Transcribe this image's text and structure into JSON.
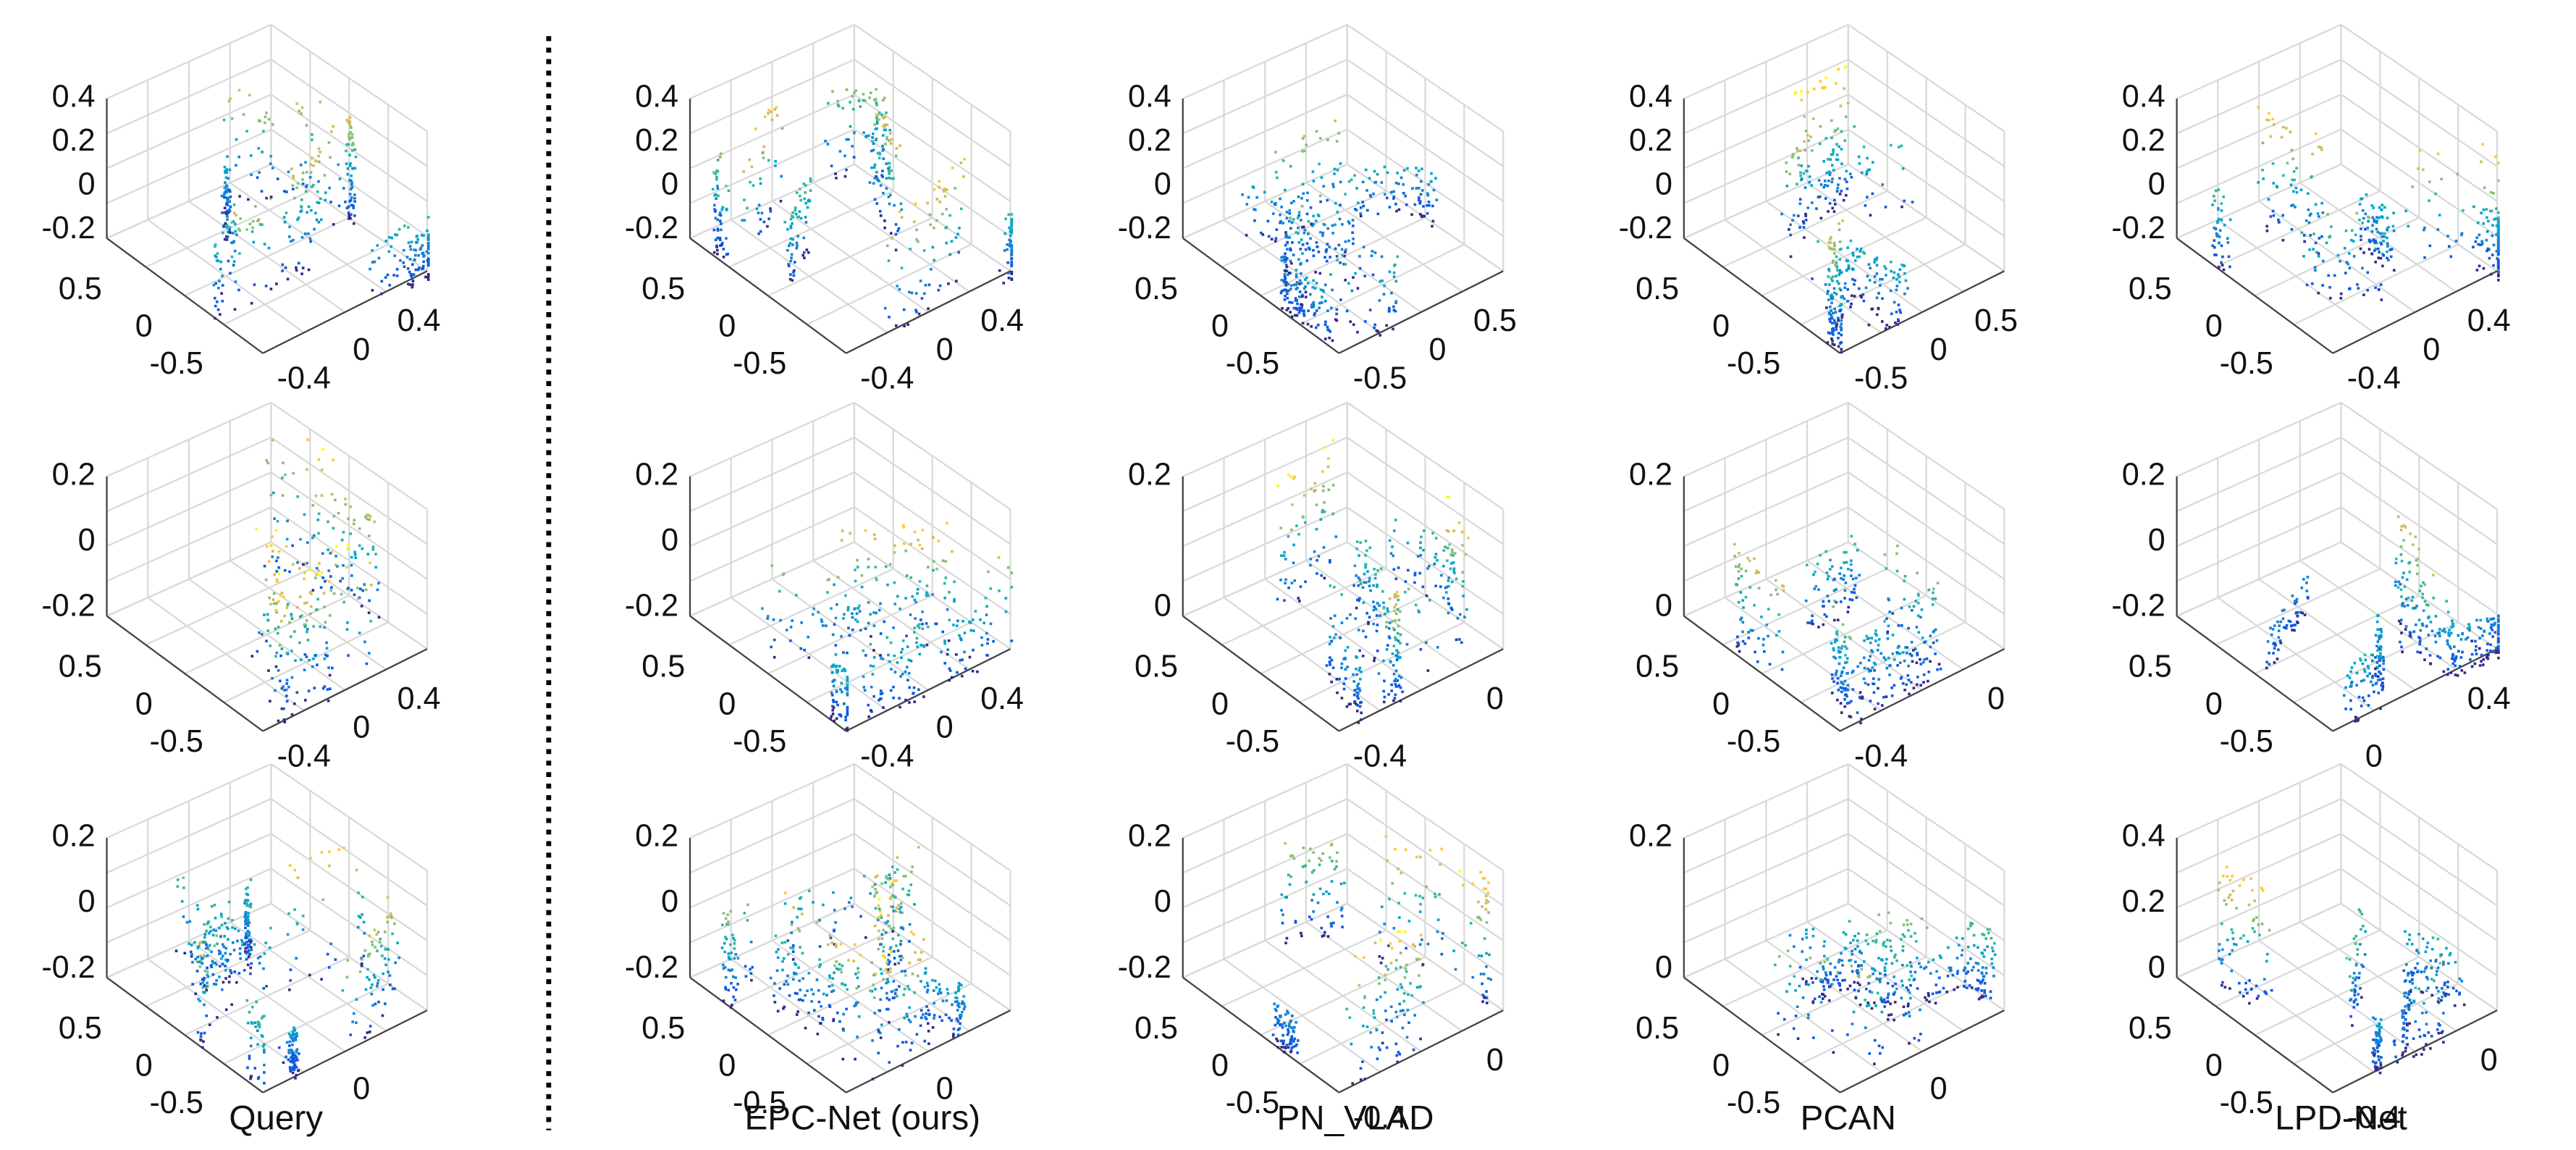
{
  "columns": [
    {
      "caption": "Query",
      "panels": [
        {
          "z_ticks": [
            "0.4",
            "0.2",
            "0",
            "-0.2"
          ],
          "y_ticks": [
            "0.5",
            "0",
            "-0.5"
          ],
          "x_ticks": [
            "-0.4",
            "0",
            "0.4"
          ]
        },
        {
          "z_ticks": [
            "0.2",
            "0",
            "-0.2"
          ],
          "y_ticks": [
            "0.5",
            "0",
            "-0.5"
          ],
          "x_ticks": [
            "-0.4",
            "0",
            "0.4"
          ]
        },
        {
          "z_ticks": [
            "0.2",
            "0",
            "-0.2"
          ],
          "y_ticks": [
            "0.5",
            "0",
            "-0.5"
          ],
          "x_ticks": [
            "0"
          ]
        }
      ]
    },
    {
      "caption": "EPC-Net (ours)",
      "panels": [
        {
          "z_ticks": [
            "0.4",
            "0.2",
            "0",
            "-0.2"
          ],
          "y_ticks": [
            "0.5",
            "0",
            "-0.5"
          ],
          "x_ticks": [
            "-0.4",
            "0",
            "0.4"
          ]
        },
        {
          "z_ticks": [
            "0.2",
            "0",
            "-0.2"
          ],
          "y_ticks": [
            "0.5",
            "0",
            "-0.5"
          ],
          "x_ticks": [
            "-0.4",
            "0",
            "0.4"
          ]
        },
        {
          "z_ticks": [
            "0.2",
            "0",
            "-0.2"
          ],
          "y_ticks": [
            "0.5",
            "0",
            "-0.5"
          ],
          "x_ticks": [
            "0"
          ]
        }
      ]
    },
    {
      "caption": "PN_VLAD",
      "panels": [
        {
          "z_ticks": [
            "0.4",
            "0.2",
            "0",
            "-0.2"
          ],
          "y_ticks": [
            "0.5",
            "0",
            "-0.5"
          ],
          "x_ticks": [
            "-0.5",
            "0",
            "0.5"
          ]
        },
        {
          "z_ticks": [
            "0.2",
            "0"
          ],
          "y_ticks": [
            "0.5",
            "0",
            "-0.5"
          ],
          "x_ticks": [
            "-0.4",
            "0"
          ]
        },
        {
          "z_ticks": [
            "0.2",
            "0",
            "-0.2"
          ],
          "y_ticks": [
            "0.5",
            "0",
            "-0.5"
          ],
          "x_ticks": [
            "-0.4",
            "0"
          ]
        }
      ]
    },
    {
      "caption": "PCAN",
      "panels": [
        {
          "z_ticks": [
            "0.4",
            "0.2",
            "0",
            "-0.2"
          ],
          "y_ticks": [
            "0.5",
            "0",
            "-0.5"
          ],
          "x_ticks": [
            "-0.5",
            "0",
            "0.5"
          ]
        },
        {
          "z_ticks": [
            "0.2",
            "0"
          ],
          "y_ticks": [
            "0.5",
            "0",
            "-0.5"
          ],
          "x_ticks": [
            "-0.4",
            "0"
          ]
        },
        {
          "z_ticks": [
            "0.2",
            "0"
          ],
          "y_ticks": [
            "0.5",
            "0",
            "-0.5"
          ],
          "x_ticks": [
            "0"
          ]
        }
      ]
    },
    {
      "caption": "LPD-Net",
      "panels": [
        {
          "z_ticks": [
            "0.4",
            "0.2",
            "0",
            "-0.2"
          ],
          "y_ticks": [
            "0.5",
            "0",
            "-0.5"
          ],
          "x_ticks": [
            "-0.4",
            "0",
            "0.4"
          ]
        },
        {
          "z_ticks": [
            "0.2",
            "0",
            "-0.2"
          ],
          "y_ticks": [
            "0.5",
            "0",
            "-0.5"
          ],
          "x_ticks": [
            "0",
            "0.4"
          ]
        },
        {
          "z_ticks": [
            "0.4",
            "0.2",
            "0"
          ],
          "y_ticks": [
            "0.5",
            "0",
            "-0.5"
          ],
          "x_ticks": [
            "-0.4",
            "0"
          ]
        }
      ]
    }
  ]
}
